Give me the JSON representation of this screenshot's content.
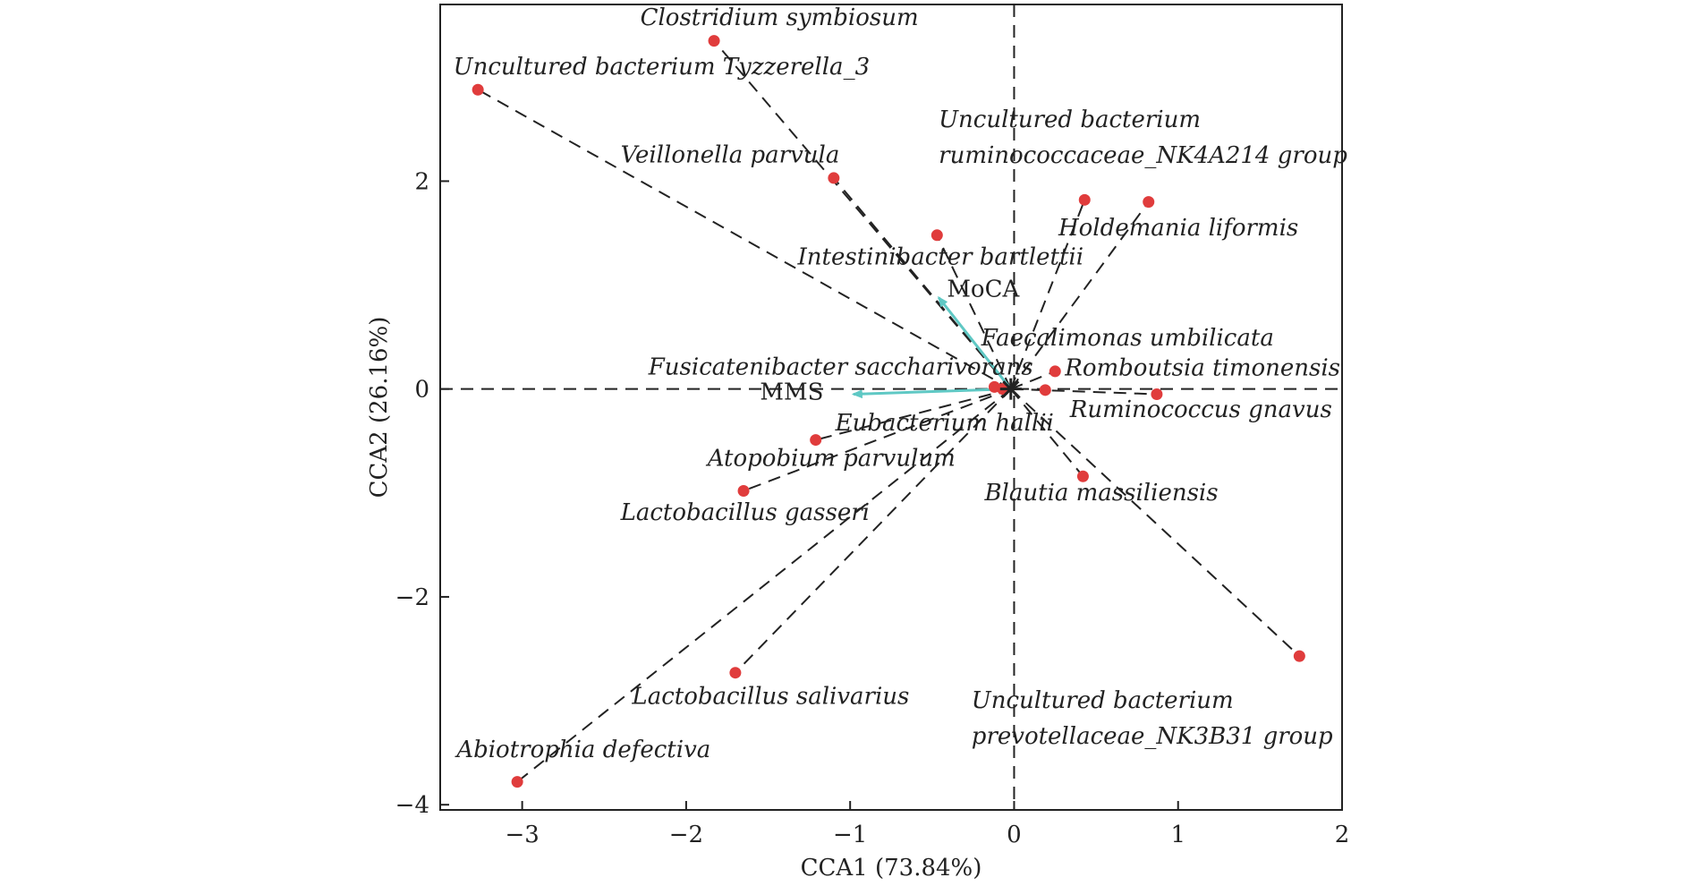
{
  "chart_data": {
    "type": "scatter",
    "title": "",
    "xlabel": "CCA1 (73.84%)",
    "ylabel": "CCA2 (26.16%)",
    "xlim": [
      -3.5,
      2.0
    ],
    "ylim": [
      -4.05,
      3.7
    ],
    "xticks": [
      -3,
      -2,
      -1,
      0,
      1,
      2
    ],
    "xtick_labels": [
      "−3",
      "−2",
      "−1",
      "0",
      "1",
      "2"
    ],
    "yticks": [
      -4,
      -2,
      0,
      2
    ],
    "ytick_labels": [
      "−4",
      "−2",
      "0",
      "2"
    ],
    "grid": false,
    "reference_lines": [
      0,
      0
    ],
    "point_color": "#e03c3c",
    "arrow_color": "#5fc8c4",
    "line_color": "#222222",
    "centroid": [
      -0.02,
      0.0
    ],
    "species": [
      {
        "name": "Clostridium symbiosum",
        "x": -1.83,
        "y": 3.35,
        "lines": [
          "Clostridium symbiosum"
        ],
        "label": [
          -2.28,
          3.5
        ]
      },
      {
        "name": "Uncultured bacterium Tyzzerella_3",
        "lines": [
          "Uncultured bacterium Tyzzerella_3"
        ],
        "x": -3.27,
        "y": 2.88,
        "label": [
          -3.42,
          3.03
        ]
      },
      {
        "name": "Veillonella parvula",
        "lines": [
          "Veillonella parvula"
        ],
        "x": -1.1,
        "y": 2.03,
        "label": [
          -2.4,
          2.18
        ]
      },
      {
        "name": "Intestinibacter bartlettii",
        "lines": [
          "Intestinibacter bartlettii"
        ],
        "x": -0.47,
        "y": 1.48,
        "label": [
          -1.32,
          1.2
        ]
      },
      {
        "name": "Uncultured bacterium ruminococcaceae_NK4A214 group",
        "lines": [
          "Uncultured bacterium",
          "ruminococcaceae_NK4A214 group"
        ],
        "x": 0.43,
        "y": 1.82,
        "label": [
          -0.46,
          2.52
        ]
      },
      {
        "name": "Holdemania liformis",
        "lines": [
          "Holdemania liformis"
        ],
        "x": 0.82,
        "y": 1.8,
        "label": [
          0.27,
          1.48
        ]
      },
      {
        "name": "Faecalimonas umbilicata",
        "lines": [
          "Faecalimonas umbilicata"
        ],
        "x": 0.25,
        "y": 0.17,
        "label": [
          -0.2,
          0.42
        ]
      },
      {
        "name": "Romboutsia timonensis",
        "lines": [
          "Romboutsia timonensis"
        ],
        "x": 0.19,
        "y": -0.01,
        "label": [
          0.31,
          0.13
        ]
      },
      {
        "name": "Ruminococcus gnavus",
        "lines": [
          "Ruminococcus gnavus"
        ],
        "x": 0.87,
        "y": -0.05,
        "label": [
          0.34,
          -0.27
        ]
      },
      {
        "name": "Fusicatenibacter saccharivorans",
        "lines": [
          "Fusicatenibacter saccharivorans"
        ],
        "x": -0.12,
        "y": 0.02,
        "label": [
          -2.23,
          0.14
        ]
      },
      {
        "name": "Eubacterium hallii",
        "lines": [
          "Eubacterium hallii"
        ],
        "x": -0.07,
        "y": 0.0,
        "label": [
          -1.09,
          -0.4
        ]
      },
      {
        "name": "Atopobium parvulum",
        "lines": [
          "Atopobium parvulum"
        ],
        "x": -1.21,
        "y": -0.49,
        "label": [
          -1.87,
          -0.74
        ]
      },
      {
        "name": "Lactobacillus gasseri",
        "lines": [
          "Lactobacillus gasseri"
        ],
        "x": -1.65,
        "y": -0.98,
        "label": [
          -2.4,
          -1.26
        ]
      },
      {
        "name": "Blautia massiliensis",
        "lines": [
          "Blautia massiliensis"
        ],
        "x": 0.42,
        "y": -0.84,
        "label": [
          -0.18,
          -1.07
        ]
      },
      {
        "name": "Uncultured bacterium prevotellaceae_NK3B31 group",
        "lines": [
          "Uncultured bacterium",
          "prevotellaceae_NK3B31 group"
        ],
        "x": 1.74,
        "y": -2.57,
        "label": [
          -0.26,
          -3.07
        ]
      },
      {
        "name": "Lactobacillus salivarius",
        "lines": [
          "Lactobacillus salivarius"
        ],
        "x": -1.7,
        "y": -2.73,
        "label": [
          -2.33,
          -3.03
        ]
      },
      {
        "name": "Abiotrophia defectiva",
        "lines": [
          "Abiotrophia defectiva"
        ],
        "x": -3.03,
        "y": -3.78,
        "label": [
          -3.4,
          -3.54
        ]
      }
    ],
    "env_vectors": [
      {
        "name": "MoCA",
        "x": -0.46,
        "y": 0.88,
        "label": [
          -0.41,
          0.89
        ]
      },
      {
        "name": "MMS",
        "x": -0.98,
        "y": -0.05,
        "label": [
          -1.55,
          -0.1
        ]
      }
    ]
  }
}
